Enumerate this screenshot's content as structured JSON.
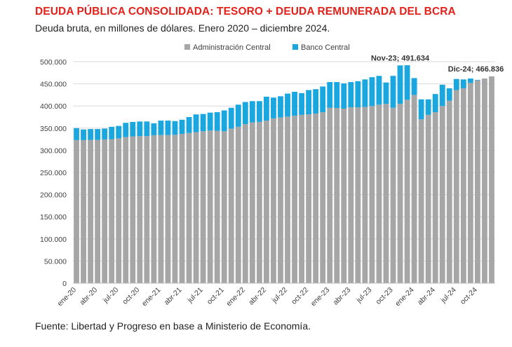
{
  "title": "DEUDA PÚBLICA CONSOLIDADA: TESORO + DEUDA REMUNERADA DEL BCRA",
  "subtitle": "Deuda bruta, en millones de dólares. Enero 2020 – diciembre 2024.",
  "source": "Fuente: Libertad y Progreso en base a Ministerio de Economía.",
  "colors": {
    "admin": "#a6a6a6",
    "bcra": "#1aa7e0",
    "title": "#e3211b",
    "grid": "#d9d9d9"
  },
  "chart_data": {
    "type": "bar",
    "stacked": true,
    "ylim": [
      0,
      500000
    ],
    "yticks": [
      0,
      50000,
      100000,
      150000,
      200000,
      250000,
      300000,
      350000,
      400000,
      450000,
      500000
    ],
    "ytick_labels": [
      "0",
      "50.000",
      "100.000",
      "150.000",
      "200.000",
      "250.000",
      "300.000",
      "350.000",
      "400.000",
      "450.000",
      "500.000"
    ],
    "grid": true,
    "legend_position": "top-center",
    "categories": [
      "ene-20",
      "feb-20",
      "mar-20",
      "abr-20",
      "may-20",
      "jun-20",
      "jul-20",
      "ago-20",
      "sep-20",
      "oct-20",
      "nov-20",
      "dic-20",
      "ene-21",
      "feb-21",
      "mar-21",
      "abr-21",
      "may-21",
      "jun-21",
      "jul-21",
      "ago-21",
      "sep-21",
      "oct-21",
      "nov-21",
      "dic-21",
      "ene-22",
      "feb-22",
      "mar-22",
      "abr-22",
      "may-22",
      "jun-22",
      "jul-22",
      "ago-22",
      "sep-22",
      "oct-22",
      "nov-22",
      "dic-22",
      "ene-23",
      "feb-23",
      "mar-23",
      "abr-23",
      "may-23",
      "jun-23",
      "jul-23",
      "ago-23",
      "sep-23",
      "oct-23",
      "nov-23",
      "dic-23",
      "ene-24",
      "feb-24",
      "mar-24",
      "abr-24",
      "may-24",
      "jun-24",
      "jul-24",
      "ago-24",
      "sep-24",
      "oct-24",
      "nov-24",
      "dic-24"
    ],
    "x_tick_labels": [
      "ene-20",
      "abr-20",
      "jul-20",
      "oct-20",
      "ene-21",
      "abr-21",
      "jul-21",
      "oct-21",
      "ene-22",
      "abr-22",
      "jul-22",
      "oct-22",
      "ene-23",
      "abr-23",
      "jul-23",
      "oct-23",
      "ene-24",
      "abr-24",
      "jul-24",
      "oct-24"
    ],
    "series": [
      {
        "name": "Administración Central",
        "values": [
          323000,
          323000,
          323500,
          323500,
          324500,
          325000,
          327000,
          330000,
          331500,
          332000,
          332000,
          334000,
          334500,
          334500,
          335000,
          337000,
          339000,
          341000,
          343000,
          344500,
          344000,
          343000,
          349000,
          353000,
          359000,
          363000,
          364000,
          367000,
          372000,
          374000,
          376000,
          378000,
          380000,
          381000,
          383000,
          386000,
          396000,
          395500,
          394000,
          397000,
          397000,
          398000,
          400000,
          403000,
          405000,
          396000,
          405000,
          414000,
          425000,
          370000,
          380000,
          386000,
          400000,
          412000,
          436000,
          440000,
          452000,
          458000,
          462000,
          466836
        ]
      },
      {
        "name": "Banco Central",
        "values": [
          27000,
          24000,
          24500,
          24500,
          24500,
          28000,
          28000,
          32000,
          32500,
          33000,
          33000,
          27000,
          32500,
          32500,
          31000,
          32000,
          36000,
          40000,
          39000,
          40500,
          42000,
          47000,
          47000,
          50000,
          50000,
          48000,
          47000,
          54000,
          47000,
          48000,
          52000,
          54000,
          49000,
          55000,
          55000,
          58000,
          58000,
          58500,
          57000,
          57000,
          59000,
          62000,
          65000,
          65000,
          48000,
          72000,
          86634,
          78000,
          38000,
          45000,
          35000,
          41000,
          48000,
          28000,
          25000,
          20000,
          10000,
          1000,
          0,
          0
        ]
      }
    ],
    "annotations": [
      {
        "category": "nov-23",
        "text": "Nov-23; 491.634"
      },
      {
        "category": "dic-24",
        "text": "Dic-24; 466.836"
      }
    ]
  }
}
